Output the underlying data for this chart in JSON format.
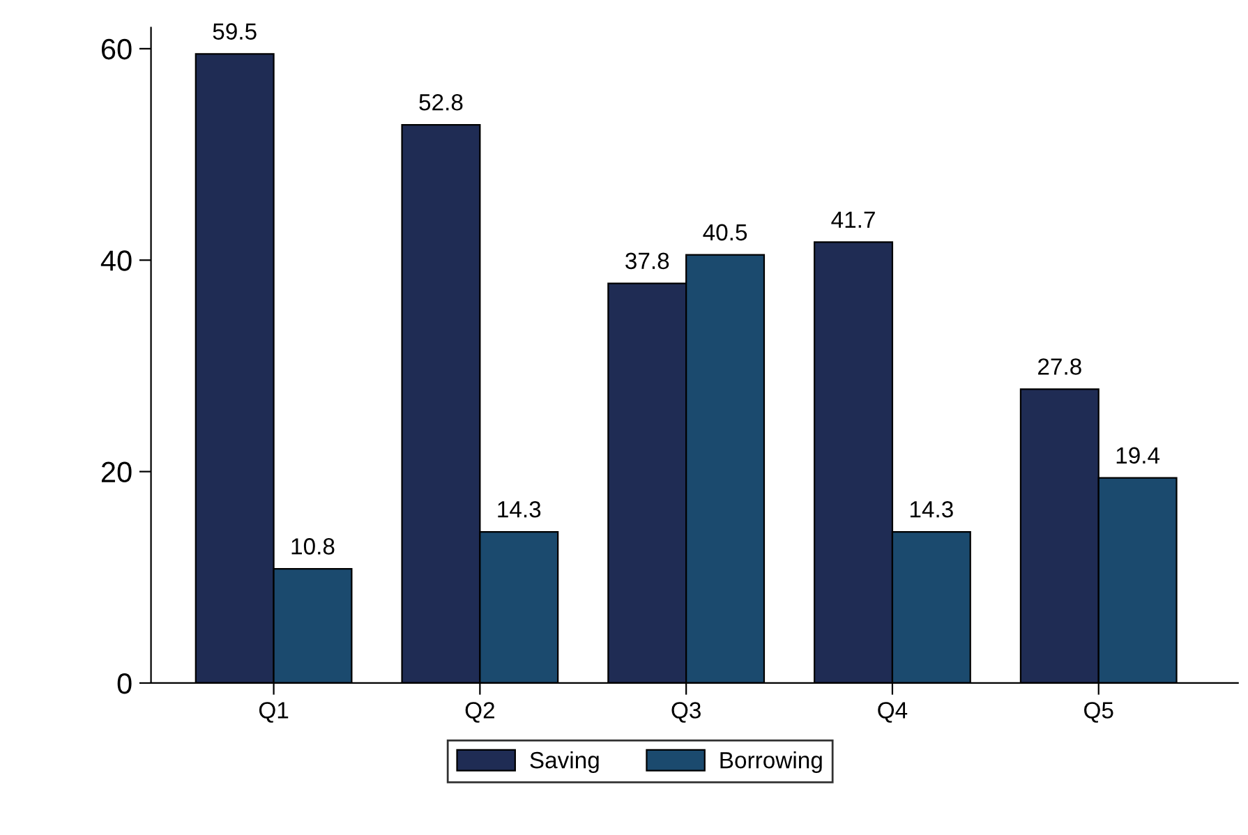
{
  "chart_data": {
    "type": "bar",
    "categories": [
      "Q1",
      "Q2",
      "Q3",
      "Q4",
      "Q5"
    ],
    "series": [
      {
        "name": "Saving",
        "color": "#1f2c54",
        "values": [
          59.5,
          52.8,
          37.8,
          41.7,
          27.8
        ]
      },
      {
        "name": "Borrowing",
        "color": "#1b4a6e",
        "values": [
          10.8,
          14.3,
          40.5,
          14.3,
          19.4
        ]
      }
    ],
    "ylim": [
      0,
      62
    ],
    "yticks": [
      0,
      20,
      40,
      60
    ],
    "data_labels": true,
    "legend": "bottom",
    "grid": false
  }
}
